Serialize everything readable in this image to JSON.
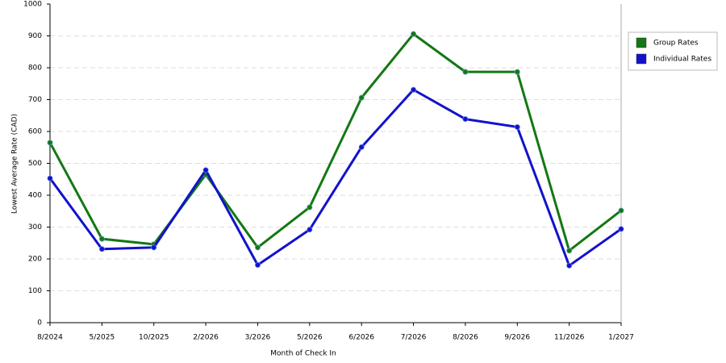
{
  "chart_data": {
    "type": "line",
    "x_label": "Month of Check In",
    "y_label": "Lowest Average Rate (CAD)",
    "categories": [
      "8/2024",
      "5/2025",
      "10/2025",
      "2/2026",
      "3/2026",
      "5/2026",
      "6/2026",
      "7/2026",
      "8/2026",
      "9/2026",
      "11/2026",
      "1/2027"
    ],
    "series": [
      {
        "name": "Group Rates",
        "color": "#137813",
        "values": [
          565,
          263,
          246,
          465,
          236,
          362,
          706,
          906,
          787,
          787,
          226,
          352
        ]
      },
      {
        "name": "Individual Rates",
        "color": "#1212cc",
        "values": [
          453,
          231,
          236,
          479,
          181,
          292,
          551,
          731,
          639,
          614,
          179,
          294
        ]
      }
    ],
    "ylim": [
      0,
      1000
    ],
    "yticks": [
      0,
      100,
      200,
      300,
      400,
      500,
      600,
      700,
      800,
      900,
      1000
    ],
    "grid": true,
    "legend": "right"
  }
}
